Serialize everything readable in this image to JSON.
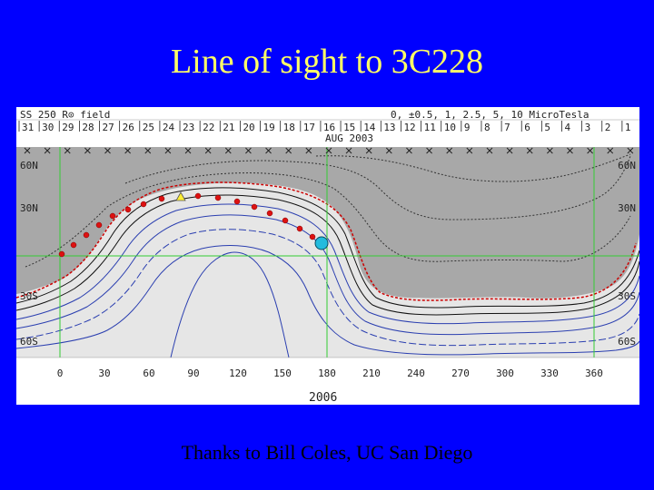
{
  "slide": {
    "title": "Line of sight to 3C228",
    "credit": "Thanks to Bill Coles, UC San Diego"
  },
  "map": {
    "header_left": "SS 250 R⊙ field",
    "header_right": "0, ±0.5, 1, 2.5, 5, 10 MicroTesla",
    "day_ticks": [
      "31",
      "30",
      "29",
      "28",
      "27",
      "26",
      "25",
      "24",
      "23",
      "22",
      "21",
      "20",
      "19",
      "18",
      "17",
      "16",
      "15",
      "14",
      "13",
      "12",
      "11",
      "10",
      "9",
      "8",
      "7",
      "6",
      "5",
      "4",
      "3",
      "2",
      "1"
    ],
    "month_label": "AUG 2003",
    "lat_labels_left": [
      "60N",
      "30N",
      "30S",
      "60S"
    ],
    "lat_labels_right": [
      "60N",
      "30N",
      "30S",
      "60S"
    ],
    "lon_ticks": [
      "0",
      "30",
      "60",
      "90",
      "120",
      "150",
      "180",
      "210",
      "240",
      "270",
      "300",
      "330",
      "360"
    ],
    "rotation_label": "2006",
    "colors": {
      "slide_bg": "#0000ff",
      "title": "#ffff66",
      "positive_region": "#a8a8a8",
      "negative_region": "#e6e6e6",
      "contour_negative": "#2b3fb0",
      "neutral_line": "#cc0000",
      "grid": "#33cc33",
      "los_points": "#dd1111",
      "target": "#22bbdd",
      "marker": "#ffee33"
    },
    "icons": {
      "start_marker": "triangle-marker-icon",
      "target_marker": "target-circle-icon"
    }
  }
}
